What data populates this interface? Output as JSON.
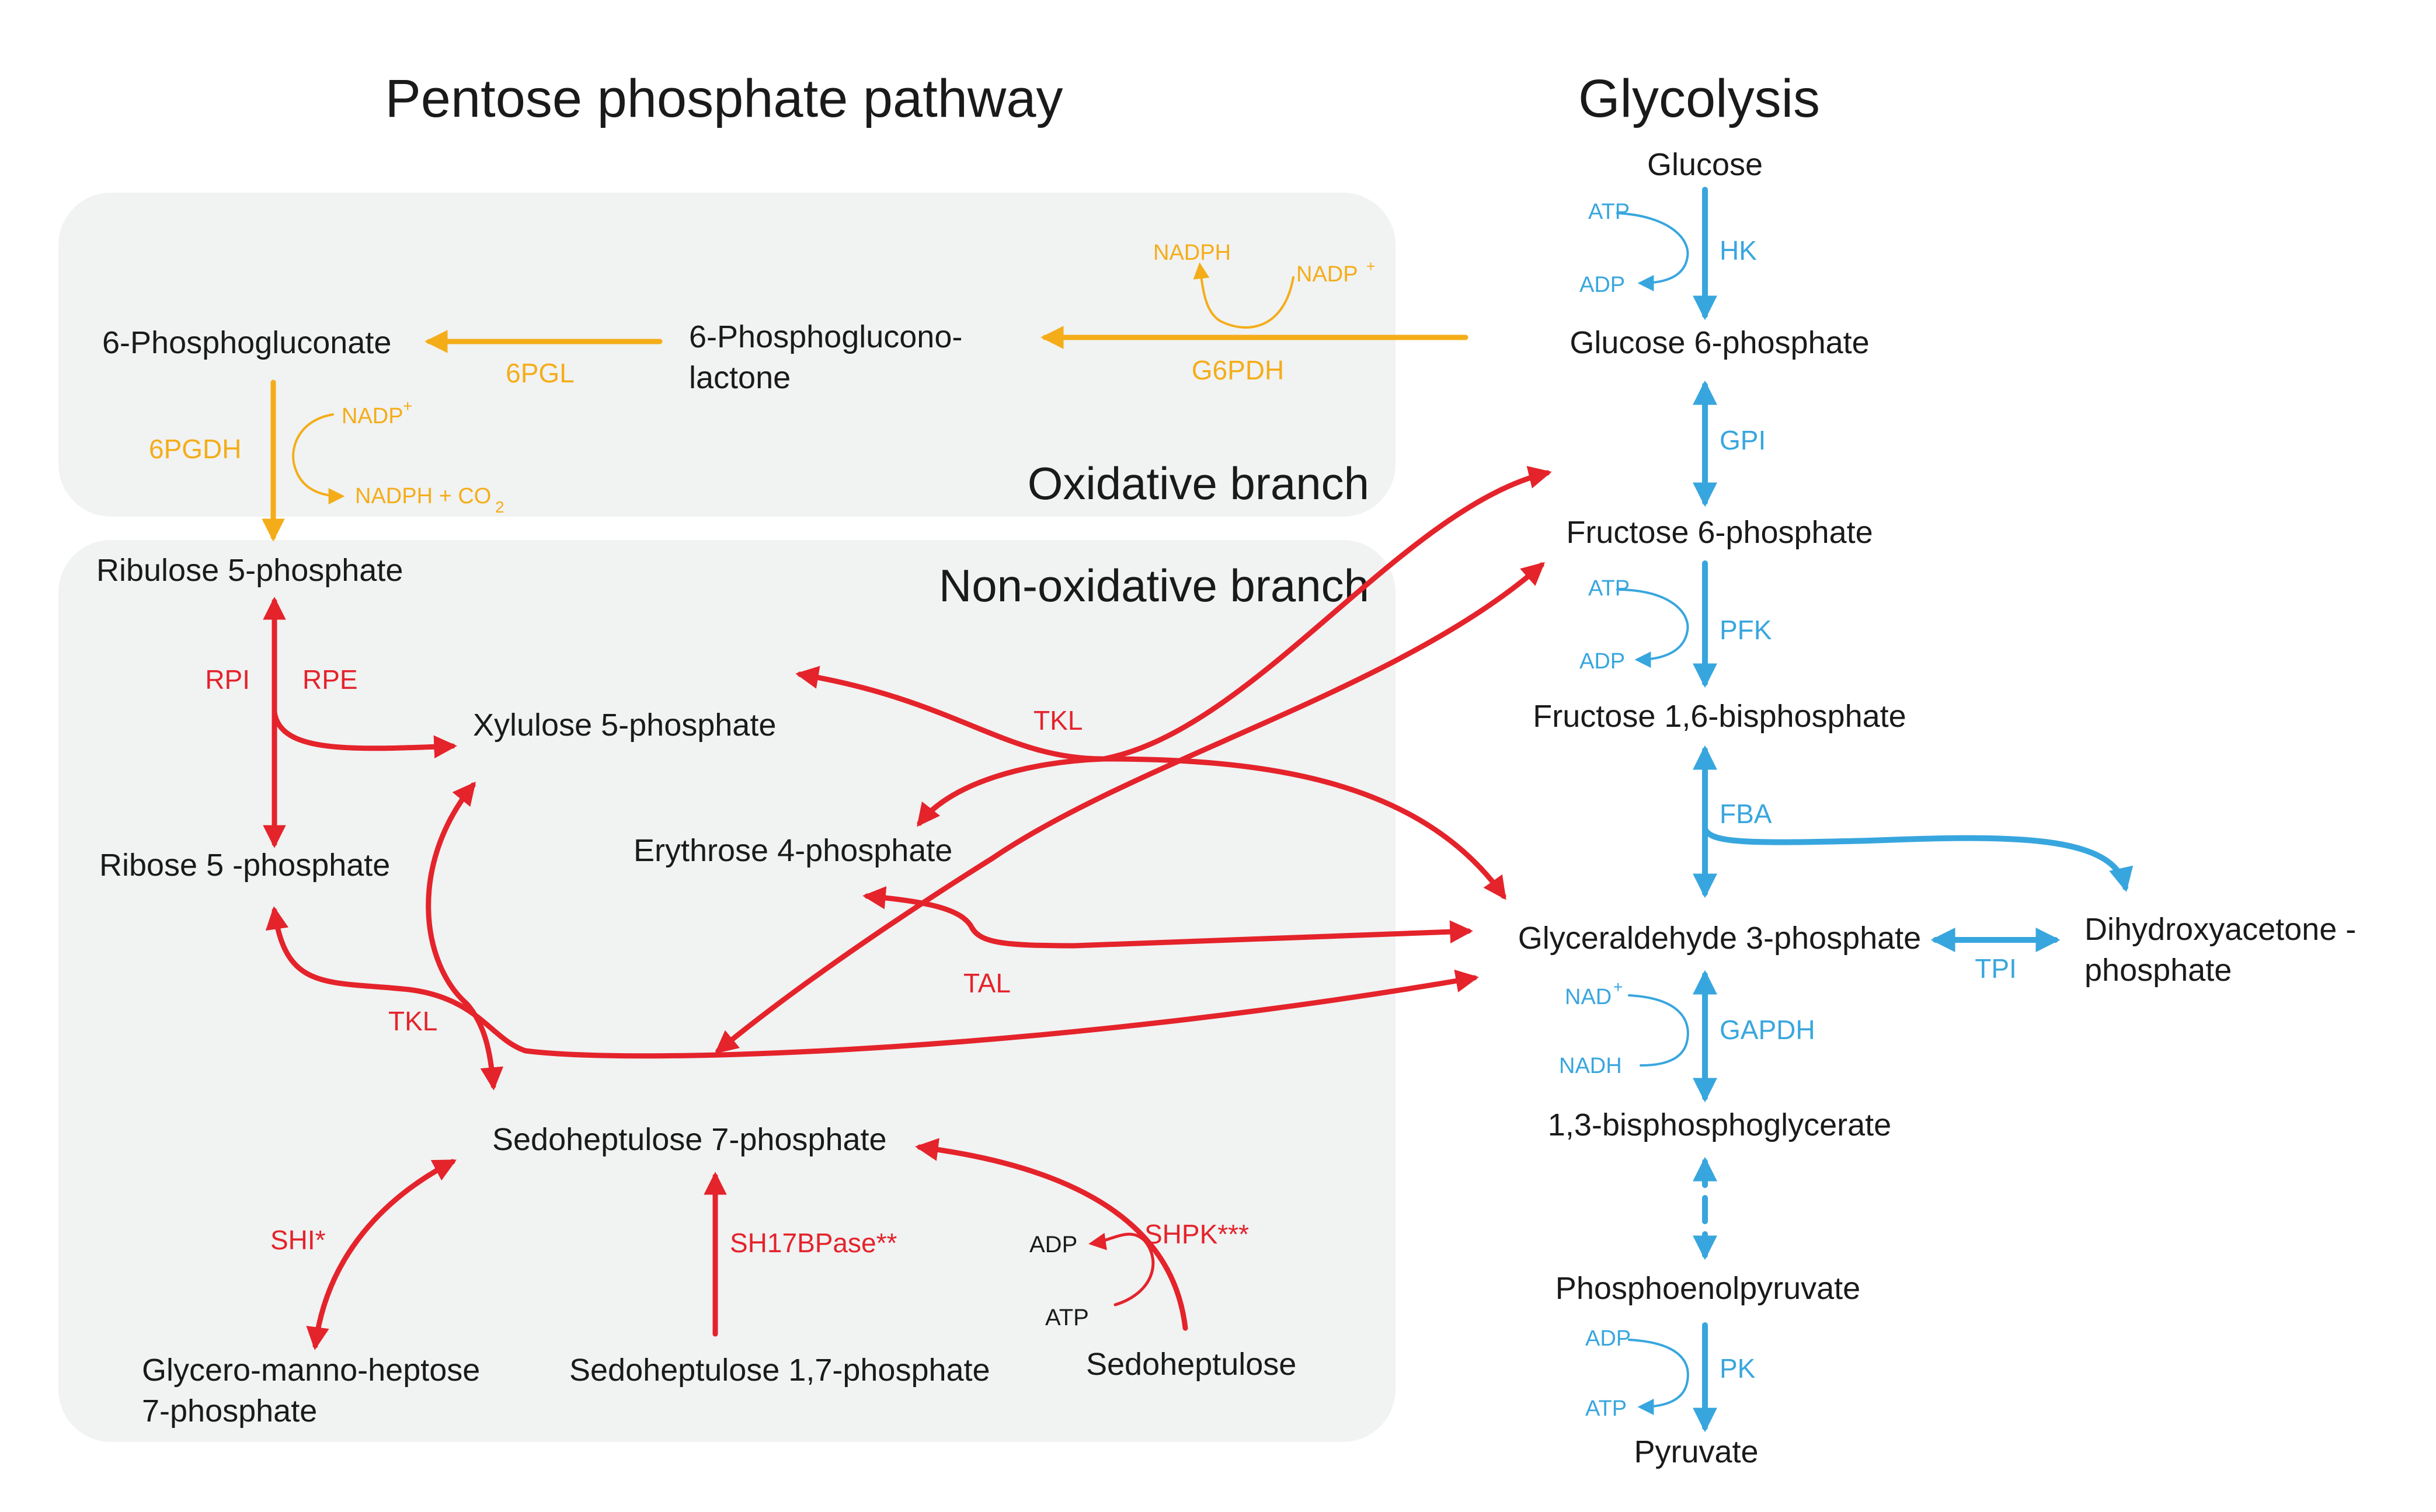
{
  "colors": {
    "nonoxidative": "#e4232b",
    "oxidative": "#f4ad19",
    "glycolysis": "#38a6de",
    "panel": "#f1f2f2"
  },
  "titles": {
    "ppp": "Pentose phosphate pathway",
    "glycolysis": "Glycolysis",
    "oxidative": "Oxidative branch",
    "nonoxidative": "Non-oxidative branch"
  },
  "ppp": {
    "phosphogluconate": "6-Phosphogluconate",
    "lactone_1": "6-Phosphoglucono-",
    "lactone_2": "lactone",
    "ribulose5p": "Ribulose  5-phosphate",
    "xylulose5p": "Xylulose  5-phosphate",
    "ribose5p": "Ribose 5 -phosphate",
    "erythrose4p": "Erythrose  4-phosphate",
    "sedoheptulose7p": "Sedoheptulose 7-phosphate",
    "gmh7p_1": "Glycero-manno-heptose",
    "gmh7p_2": "7-phosphate",
    "sh17bp": "Sedoheptulose 1,7-phosphate",
    "sedoheptulose": "Sedoheptulose"
  },
  "glyc": {
    "glucose": "Glucose",
    "g6p": "Glucose 6-phosphate",
    "f6p": "Fructose 6-phosphate",
    "f16bp": "Fructose 1,6-bisphosphate",
    "gap": "Glyceraldehyde 3-phosphate",
    "dhap_1": "Dihydroxyacetone -",
    "dhap_2": "phosphate",
    "bpg": "1,3-bisphosphoglycerate",
    "pep": "Phosphoenolpyruvate",
    "pyruvate": "Pyruvate"
  },
  "enzymes": {
    "g6pdh": "G6PDH",
    "pgl": "6PGL",
    "pgdh": "6PGDH",
    "rpi": "RPI",
    "rpe": "RPE",
    "tkl_upper": "TKL",
    "tkl_lower": "TKL",
    "tal": "TAL",
    "shi": "SHI*",
    "sh17bpase": "SH17BPase**",
    "shpk": "SHPK***",
    "hk": "HK",
    "gpi": "GPI",
    "pfk": "PFK",
    "fba": "FBA",
    "tpi": "TPI",
    "gapdh": "GAPDH",
    "pk": "PK"
  },
  "cofactors": {
    "g6pdh_out": "NADPH",
    "g6pdh_in": "NADP",
    "g6pdh_in_sup": "+",
    "pgdh_in": "NADP",
    "pgdh_in_sup": "+",
    "pgdh_out": "NADPH + CO",
    "pgdh_out_sub": "2",
    "hk_in": "ATP",
    "hk_out": "ADP",
    "pfk_in": "ATP",
    "pfk_out": "ADP",
    "gapdh_in": "NAD",
    "gapdh_in_sup": "+",
    "gapdh_out": "NADH",
    "pk_in": "ADP",
    "pk_out": "ATP",
    "shpk_in": "ATP",
    "shpk_out": "ADP"
  },
  "icons": {
    "arrowhead_red": "arrowhead-icon",
    "arrowhead_yellow": "arrowhead-icon",
    "arrowhead_blue": "arrowhead-icon"
  }
}
